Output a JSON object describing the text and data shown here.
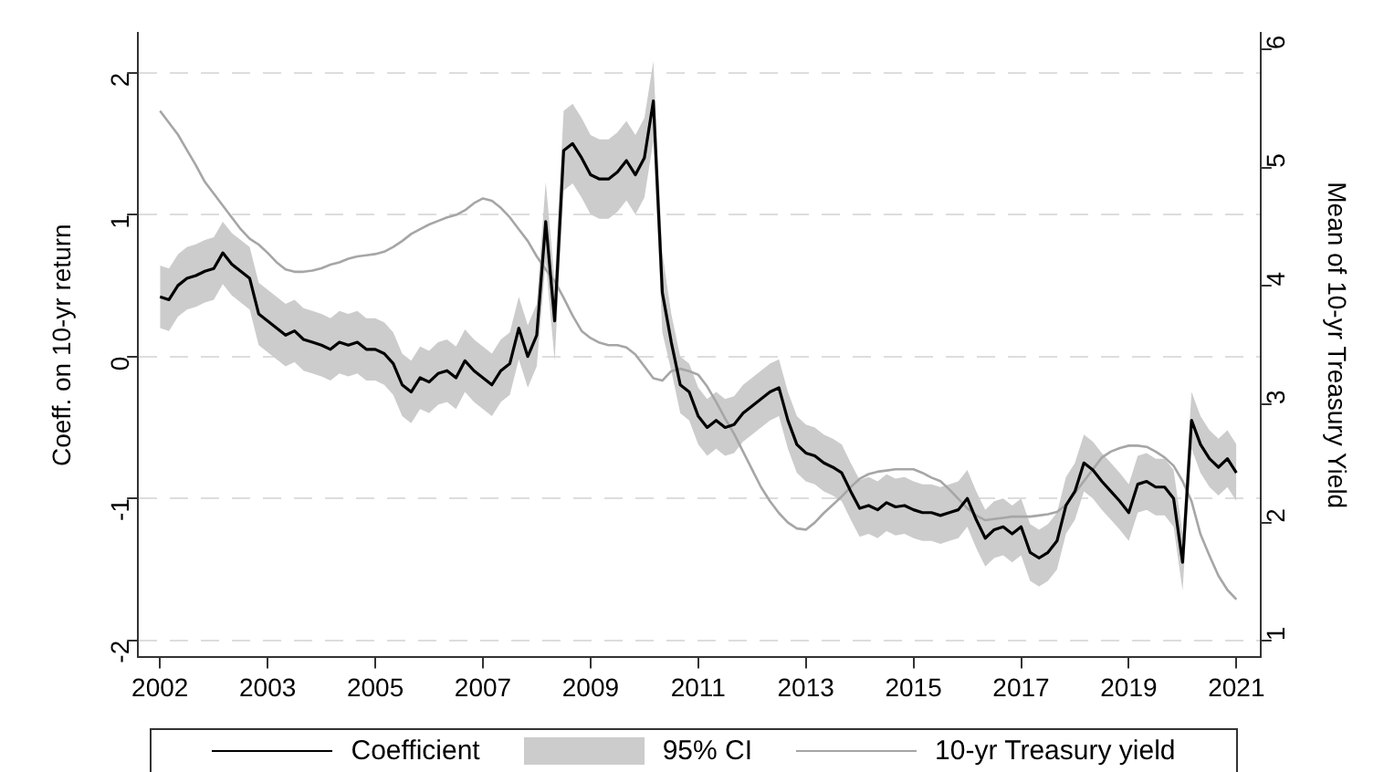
{
  "chart_data": {
    "type": "line",
    "ylabel": "Coeff. on 10-yr return",
    "y2label": "Mean of 10-yr Treasury Yield",
    "annotations": [
      "95% CI"
    ],
    "categories": [
      "2002",
      null,
      null,
      null,
      null,
      null,
      null,
      null,
      null,
      null,
      null,
      null,
      "2003",
      null,
      null,
      null,
      null,
      null,
      null,
      null,
      null,
      null,
      null,
      null,
      "2005",
      null,
      null,
      null,
      null,
      null,
      null,
      null,
      null,
      null,
      null,
      null,
      "2007",
      null,
      null,
      null,
      null,
      null,
      null,
      null,
      null,
      null,
      null,
      null,
      "2009",
      null,
      null,
      null,
      null,
      null,
      null,
      null,
      null,
      null,
      null,
      null,
      "2011",
      null,
      null,
      null,
      null,
      null,
      null,
      null,
      null,
      null,
      null,
      null,
      "2013",
      null,
      null,
      null,
      null,
      null,
      null,
      null,
      null,
      null,
      null,
      null,
      "2015",
      null,
      null,
      null,
      null,
      null,
      null,
      null,
      null,
      null,
      null,
      null,
      "2017",
      null,
      null,
      null,
      null,
      null,
      null,
      null,
      null,
      null,
      null,
      null,
      "2019",
      null,
      null,
      null,
      null,
      null,
      null,
      null,
      null,
      null,
      null,
      null,
      "2021"
    ],
    "series": [
      {
        "name": "Coefficient",
        "color": "#000000",
        "values": [
          0.42,
          0.4,
          0.5,
          0.55,
          0.57,
          0.6,
          0.62,
          0.73,
          0.65,
          0.6,
          0.55,
          0.3,
          0.25,
          0.2,
          0.15,
          0.18,
          0.12,
          0.1,
          0.08,
          0.05,
          0.1,
          0.08,
          0.1,
          0.05,
          0.05,
          0.02,
          -0.05,
          -0.2,
          -0.25,
          -0.15,
          -0.18,
          -0.12,
          -0.1,
          -0.15,
          -0.03,
          -0.1,
          -0.15,
          -0.2,
          -0.1,
          -0.05,
          0.2,
          0.0,
          0.15,
          0.95,
          0.25,
          1.45,
          1.5,
          1.4,
          1.28,
          1.25,
          1.25,
          1.3,
          1.38,
          1.28,
          1.4,
          1.8,
          0.45,
          0.1,
          -0.2,
          -0.25,
          -0.42,
          -0.5,
          -0.45,
          -0.5,
          -0.48,
          -0.4,
          -0.35,
          -0.3,
          -0.25,
          -0.22,
          -0.45,
          -0.62,
          -0.68,
          -0.7,
          -0.75,
          -0.78,
          -0.82,
          -0.95,
          -1.07,
          -1.05,
          -1.08,
          -1.03,
          -1.06,
          -1.05,
          -1.08,
          -1.1,
          -1.1,
          -1.12,
          -1.1,
          -1.08,
          -1.0,
          -1.15,
          -1.28,
          -1.22,
          -1.2,
          -1.25,
          -1.2,
          -1.38,
          -1.42,
          -1.38,
          -1.3,
          -1.05,
          -0.95,
          -0.75,
          -0.8,
          -0.88,
          -0.95,
          -1.02,
          -1.1,
          -0.9,
          -0.88,
          -0.92,
          -0.92,
          -1.0,
          -1.45,
          -0.45,
          -0.62,
          -0.72,
          -0.78,
          -0.72,
          -0.82
        ],
        "lower": [
          0.2,
          0.18,
          0.28,
          0.33,
          0.35,
          0.38,
          0.4,
          0.51,
          0.43,
          0.38,
          0.33,
          0.08,
          0.03,
          -0.02,
          -0.07,
          -0.04,
          -0.1,
          -0.12,
          -0.14,
          -0.17,
          -0.12,
          -0.14,
          -0.12,
          -0.17,
          -0.17,
          -0.2,
          -0.27,
          -0.42,
          -0.47,
          -0.37,
          -0.4,
          -0.34,
          -0.32,
          -0.37,
          -0.25,
          -0.32,
          -0.37,
          -0.42,
          -0.32,
          -0.27,
          -0.02,
          -0.22,
          -0.07,
          0.67,
          -0.03,
          1.17,
          1.22,
          1.12,
          1.0,
          0.97,
          0.97,
          1.02,
          1.1,
          1.0,
          1.12,
          1.52,
          0.17,
          -0.1,
          -0.4,
          -0.45,
          -0.62,
          -0.7,
          -0.65,
          -0.7,
          -0.68,
          -0.6,
          -0.55,
          -0.5,
          -0.45,
          -0.42,
          -0.65,
          -0.82,
          -0.88,
          -0.9,
          -0.95,
          -0.98,
          -1.02,
          -1.15,
          -1.27,
          -1.25,
          -1.28,
          -1.23,
          -1.26,
          -1.25,
          -1.28,
          -1.3,
          -1.3,
          -1.32,
          -1.3,
          -1.28,
          -1.2,
          -1.35,
          -1.48,
          -1.42,
          -1.4,
          -1.45,
          -1.4,
          -1.58,
          -1.62,
          -1.58,
          -1.5,
          -1.25,
          -1.15,
          -0.95,
          -1.0,
          -1.08,
          -1.15,
          -1.22,
          -1.3,
          -1.1,
          -1.08,
          -1.12,
          -1.12,
          -1.2,
          -1.65,
          -0.65,
          -0.82,
          -0.92,
          -0.98,
          -0.92,
          -1.02
        ],
        "upper": [
          0.64,
          0.62,
          0.72,
          0.77,
          0.79,
          0.82,
          0.84,
          0.95,
          0.87,
          0.82,
          0.77,
          0.52,
          0.47,
          0.42,
          0.37,
          0.4,
          0.34,
          0.32,
          0.3,
          0.27,
          0.32,
          0.3,
          0.32,
          0.27,
          0.27,
          0.24,
          0.17,
          0.02,
          -0.03,
          0.07,
          0.04,
          0.1,
          0.12,
          0.07,
          0.19,
          0.12,
          0.07,
          0.02,
          0.12,
          0.17,
          0.42,
          0.22,
          0.37,
          1.23,
          0.53,
          1.73,
          1.78,
          1.68,
          1.56,
          1.53,
          1.53,
          1.58,
          1.66,
          1.56,
          1.68,
          2.08,
          0.73,
          0.3,
          0.0,
          -0.05,
          -0.22,
          -0.3,
          -0.25,
          -0.3,
          -0.28,
          -0.2,
          -0.15,
          -0.1,
          -0.05,
          -0.02,
          -0.25,
          -0.42,
          -0.48,
          -0.5,
          -0.55,
          -0.58,
          -0.62,
          -0.75,
          -0.87,
          -0.85,
          -0.88,
          -0.83,
          -0.86,
          -0.85,
          -0.88,
          -0.9,
          -0.9,
          -0.92,
          -0.9,
          -0.88,
          -0.8,
          -0.95,
          -1.08,
          -1.02,
          -1.0,
          -1.05,
          -1.0,
          -1.18,
          -1.22,
          -1.18,
          -1.1,
          -0.85,
          -0.75,
          -0.55,
          -0.6,
          -0.68,
          -0.75,
          -0.82,
          -0.9,
          -0.7,
          -0.68,
          -0.72,
          -0.72,
          -0.8,
          -1.25,
          -0.25,
          -0.42,
          -0.52,
          -0.58,
          -0.52,
          -0.62
        ]
      },
      {
        "name": "10-yr Treasury yield",
        "color": "#a6a6a6",
        "axis": "y2",
        "values": [
          5.48,
          5.38,
          5.28,
          5.15,
          5.02,
          4.88,
          4.78,
          4.68,
          4.58,
          4.48,
          4.4,
          4.35,
          4.28,
          4.2,
          4.14,
          4.12,
          4.12,
          4.13,
          4.15,
          4.18,
          4.2,
          4.23,
          4.25,
          4.26,
          4.27,
          4.29,
          4.33,
          4.38,
          4.44,
          4.48,
          4.52,
          4.55,
          4.58,
          4.6,
          4.64,
          4.7,
          4.74,
          4.72,
          4.66,
          4.58,
          4.48,
          4.38,
          4.25,
          4.14,
          4.04,
          3.9,
          3.75,
          3.62,
          3.56,
          3.52,
          3.5,
          3.5,
          3.48,
          3.42,
          3.32,
          3.22,
          3.2,
          3.28,
          3.3,
          3.28,
          3.25,
          3.15,
          3.02,
          2.88,
          2.75,
          2.6,
          2.45,
          2.3,
          2.18,
          2.08,
          2.0,
          1.95,
          1.94,
          2.0,
          2.08,
          2.15,
          2.22,
          2.3,
          2.37,
          2.41,
          2.43,
          2.44,
          2.45,
          2.45,
          2.45,
          2.42,
          2.38,
          2.35,
          2.28,
          2.2,
          2.12,
          2.06,
          2.02,
          2.03,
          2.04,
          2.05,
          2.05,
          2.05,
          2.06,
          2.07,
          2.09,
          2.15,
          2.25,
          2.35,
          2.45,
          2.55,
          2.6,
          2.63,
          2.65,
          2.65,
          2.64,
          2.6,
          2.55,
          2.48,
          2.35,
          2.18,
          1.9,
          1.72,
          1.55,
          1.43,
          1.35
        ]
      }
    ],
    "ylim": [
      -2.12,
      2.28
    ],
    "yticks": [
      -2,
      -1,
      0,
      1,
      2
    ],
    "y2lim": [
      0.86,
      6.14
    ],
    "y2ticks": [
      1,
      2,
      3,
      4,
      5,
      6
    ],
    "grid": "y",
    "legend": "bottom",
    "marker": "none",
    "line_style": "solid"
  }
}
